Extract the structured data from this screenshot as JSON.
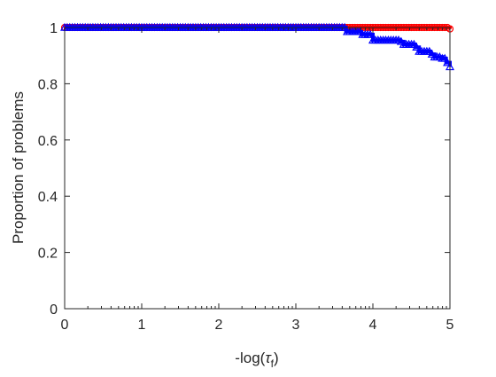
{
  "chart_data": {
    "type": "line",
    "xlabel_main": "-log(",
    "xlabel_tau": "τ",
    "xlabel_sub": "f",
    "xlabel_close": ")",
    "ylabel": "Proportion of problems",
    "xlim": [
      0,
      5
    ],
    "ylim": [
      0,
      1
    ],
    "xticks": [
      0,
      1,
      2,
      3,
      4,
      5
    ],
    "xtick_labels": [
      "0",
      "1",
      "2",
      "3",
      "4",
      "5"
    ],
    "yticks": [
      0,
      0.2,
      0.4,
      0.6,
      0.8,
      1
    ],
    "ytick_labels": [
      "0",
      "0.2",
      "0.4",
      "0.6",
      "0.8",
      "1"
    ],
    "grid": false,
    "legend": "none",
    "series": [
      {
        "color": "#ff0000",
        "marker": "circle",
        "x": [
          0,
          3.6,
          5.0
        ],
        "y": [
          1.0,
          1.0,
          0.995
        ]
      },
      {
        "color": "#0000ff",
        "marker": "triangle",
        "x": [
          0,
          3.6,
          3.65,
          3.75,
          3.85,
          3.92,
          4.0,
          4.05,
          4.35,
          4.4,
          4.55,
          4.6,
          4.75,
          4.8,
          4.9,
          4.95,
          5.0
        ],
        "y": [
          1.0,
          1.0,
          0.985,
          0.985,
          0.975,
          0.975,
          0.955,
          0.955,
          0.95,
          0.94,
          0.93,
          0.915,
          0.905,
          0.895,
          0.89,
          0.875,
          0.86
        ]
      }
    ]
  }
}
